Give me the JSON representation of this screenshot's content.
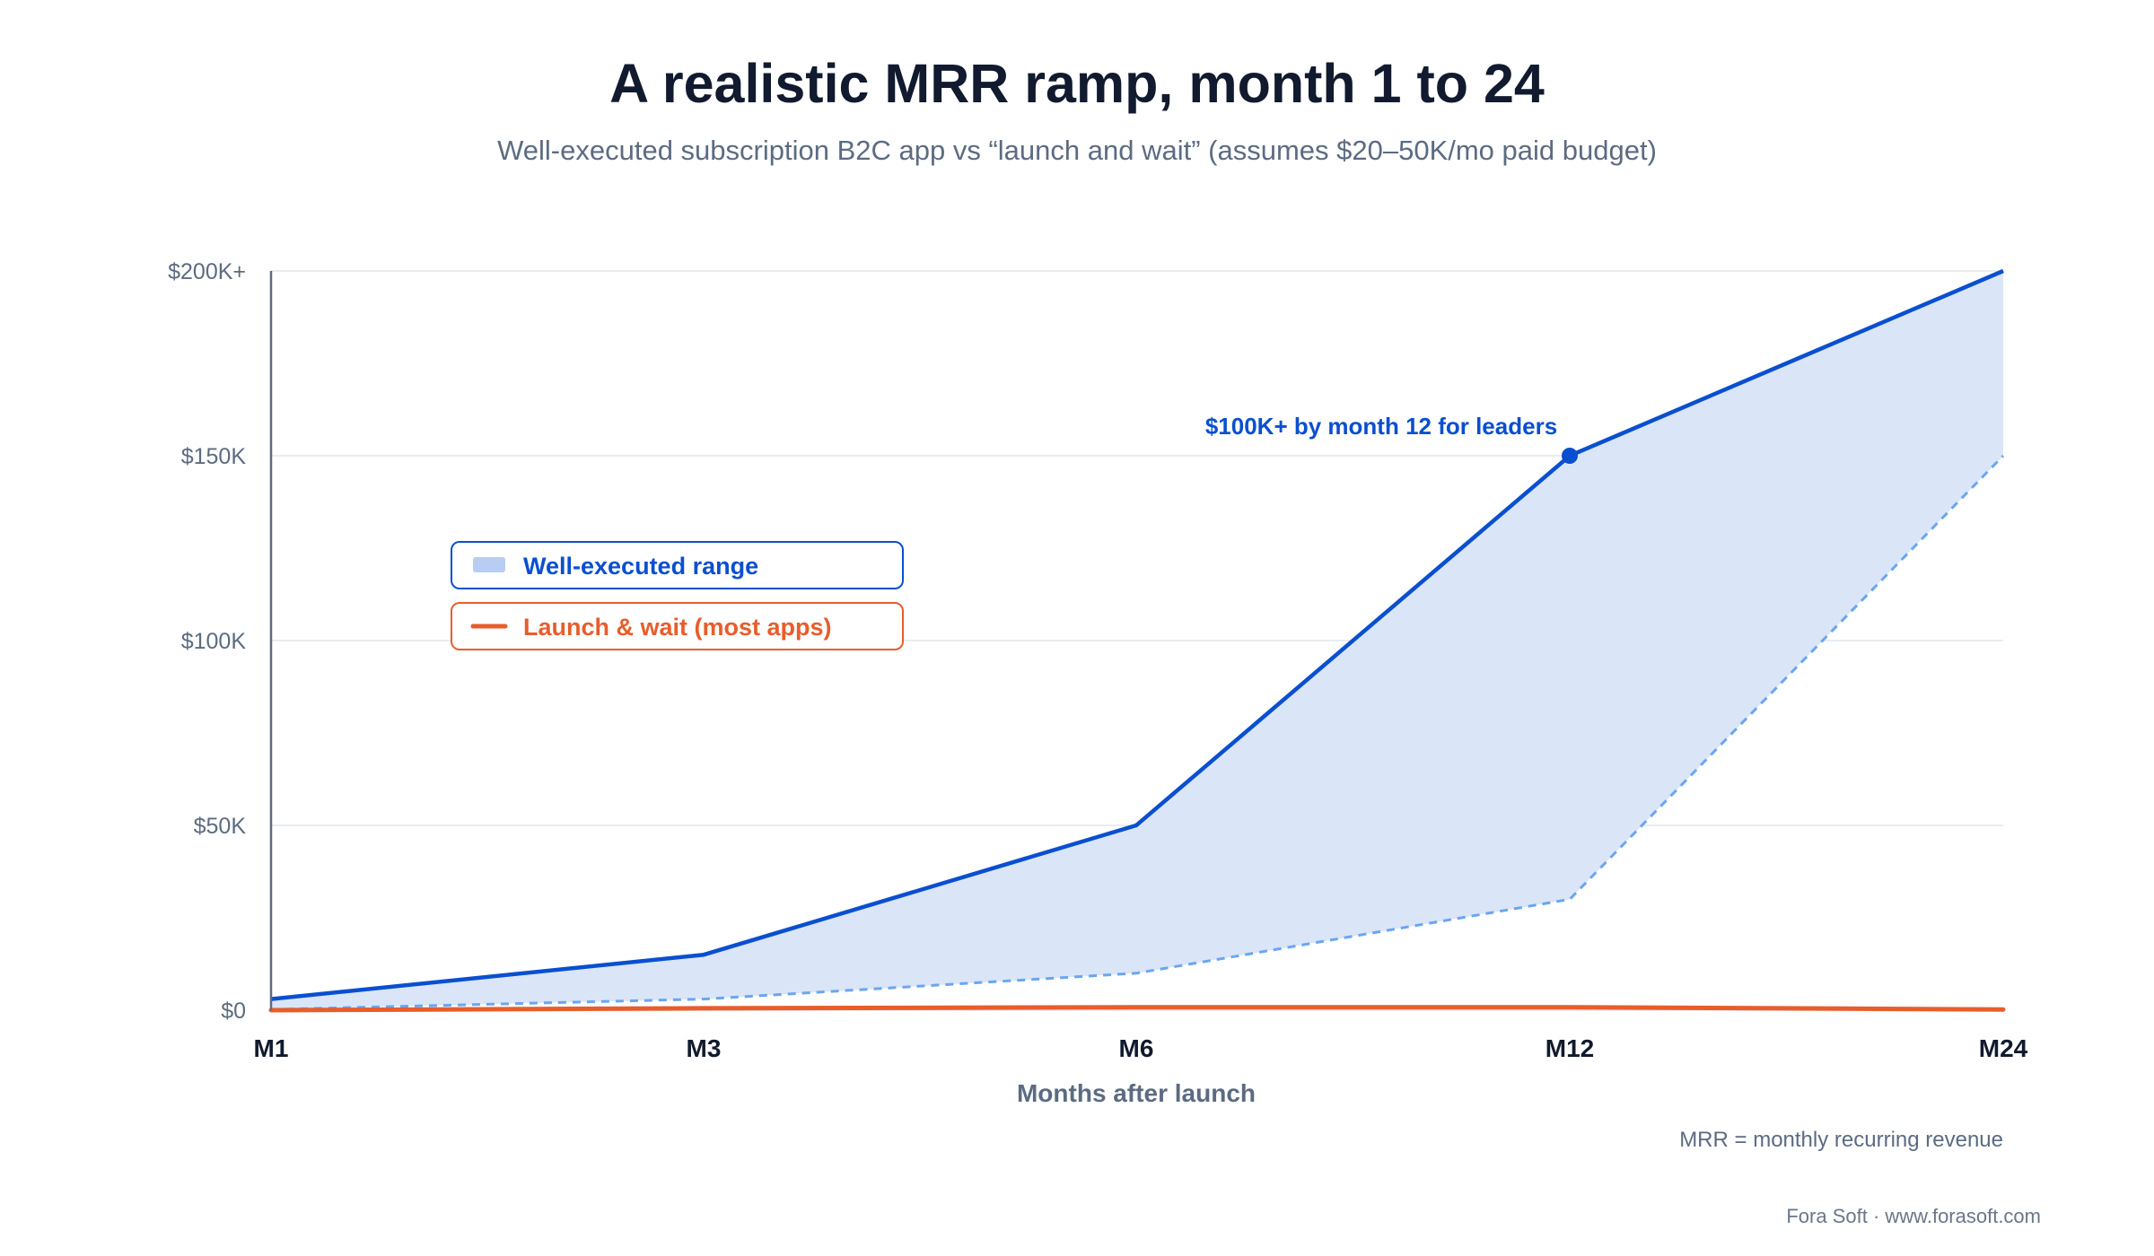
{
  "title": "A realistic MRR ramp, month 1 to 24",
  "subtitle": "Well-executed subscription B2C app vs “launch and wait” (assumes $20–50K/mo paid budget)",
  "chart_data": {
    "type": "area",
    "categories": [
      "M1",
      "M3",
      "M6",
      "M12",
      "M24"
    ],
    "y_tick_labels": [
      "$0",
      "$50K",
      "$100K",
      "$150K",
      "$200K+"
    ],
    "y_tick_values": [
      0,
      50000,
      100000,
      150000,
      200000
    ],
    "ylim": [
      0,
      200000
    ],
    "xlabel": "Months after launch",
    "grid": true,
    "series": [
      {
        "name": "Well-executed range",
        "kind": "range-upper",
        "color": "#0a4fd0",
        "values": [
          3000,
          15000,
          50000,
          150000,
          200000
        ]
      },
      {
        "kind": "range-lower",
        "color": "#6aa6f0",
        "values": [
          200,
          3000,
          10000,
          30000,
          150000
        ]
      },
      {
        "name": "Launch & wait (most apps)",
        "kind": "line",
        "color": "#e85d2c",
        "values": [
          0,
          500,
          800,
          800,
          200
        ]
      }
    ],
    "range_fill_color": "#dae5f7",
    "legend_placement": "upper-left",
    "annotation": {
      "text": "$100K+ by month 12 for leaders",
      "category": "M12",
      "value": 150000
    },
    "note": "MRR = monthly recurring revenue"
  },
  "credit": "Fora Soft · www.forasoft.com"
}
